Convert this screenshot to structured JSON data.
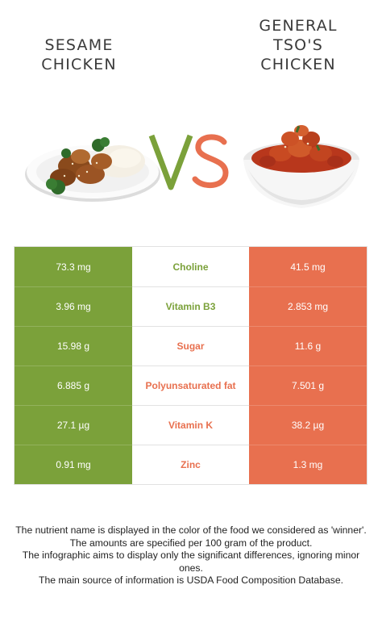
{
  "left_food": {
    "name_line1": "SESAME",
    "name_line2": "CHICKEN",
    "color": "#7ba13a"
  },
  "right_food": {
    "name_line1": "GENERAL",
    "name_line2": "TSO'S",
    "name_line3": "CHICKEN",
    "color": "#e8704f"
  },
  "vs": {
    "v": "V",
    "s": "S"
  },
  "rows": [
    {
      "left": "73.3 mg",
      "nutrient": "Choline",
      "right": "41.5 mg",
      "winner": "left"
    },
    {
      "left": "3.96 mg",
      "nutrient": "Vitamin B3",
      "right": "2.853 mg",
      "winner": "left"
    },
    {
      "left": "15.98 g",
      "nutrient": "Sugar",
      "right": "11.6 g",
      "winner": "right"
    },
    {
      "left": "6.885 g",
      "nutrient": "Polyunsaturated fat",
      "right": "7.501 g",
      "winner": "right"
    },
    {
      "left": "27.1 µg",
      "nutrient": "Vitamin K",
      "right": "38.2 µg",
      "winner": "right"
    },
    {
      "left": "0.91 mg",
      "nutrient": "Zinc",
      "right": "1.3 mg",
      "winner": "right"
    }
  ],
  "footer": {
    "line1": "The nutrient name is displayed in the color of the food we considered as 'winner'.",
    "line2": "The amounts are specified per 100 gram of the product.",
    "line3": "The infographic aims to display only the significant differences, ignoring minor ones.",
    "line4": "The main source of information is USDA Food Composition Database."
  }
}
